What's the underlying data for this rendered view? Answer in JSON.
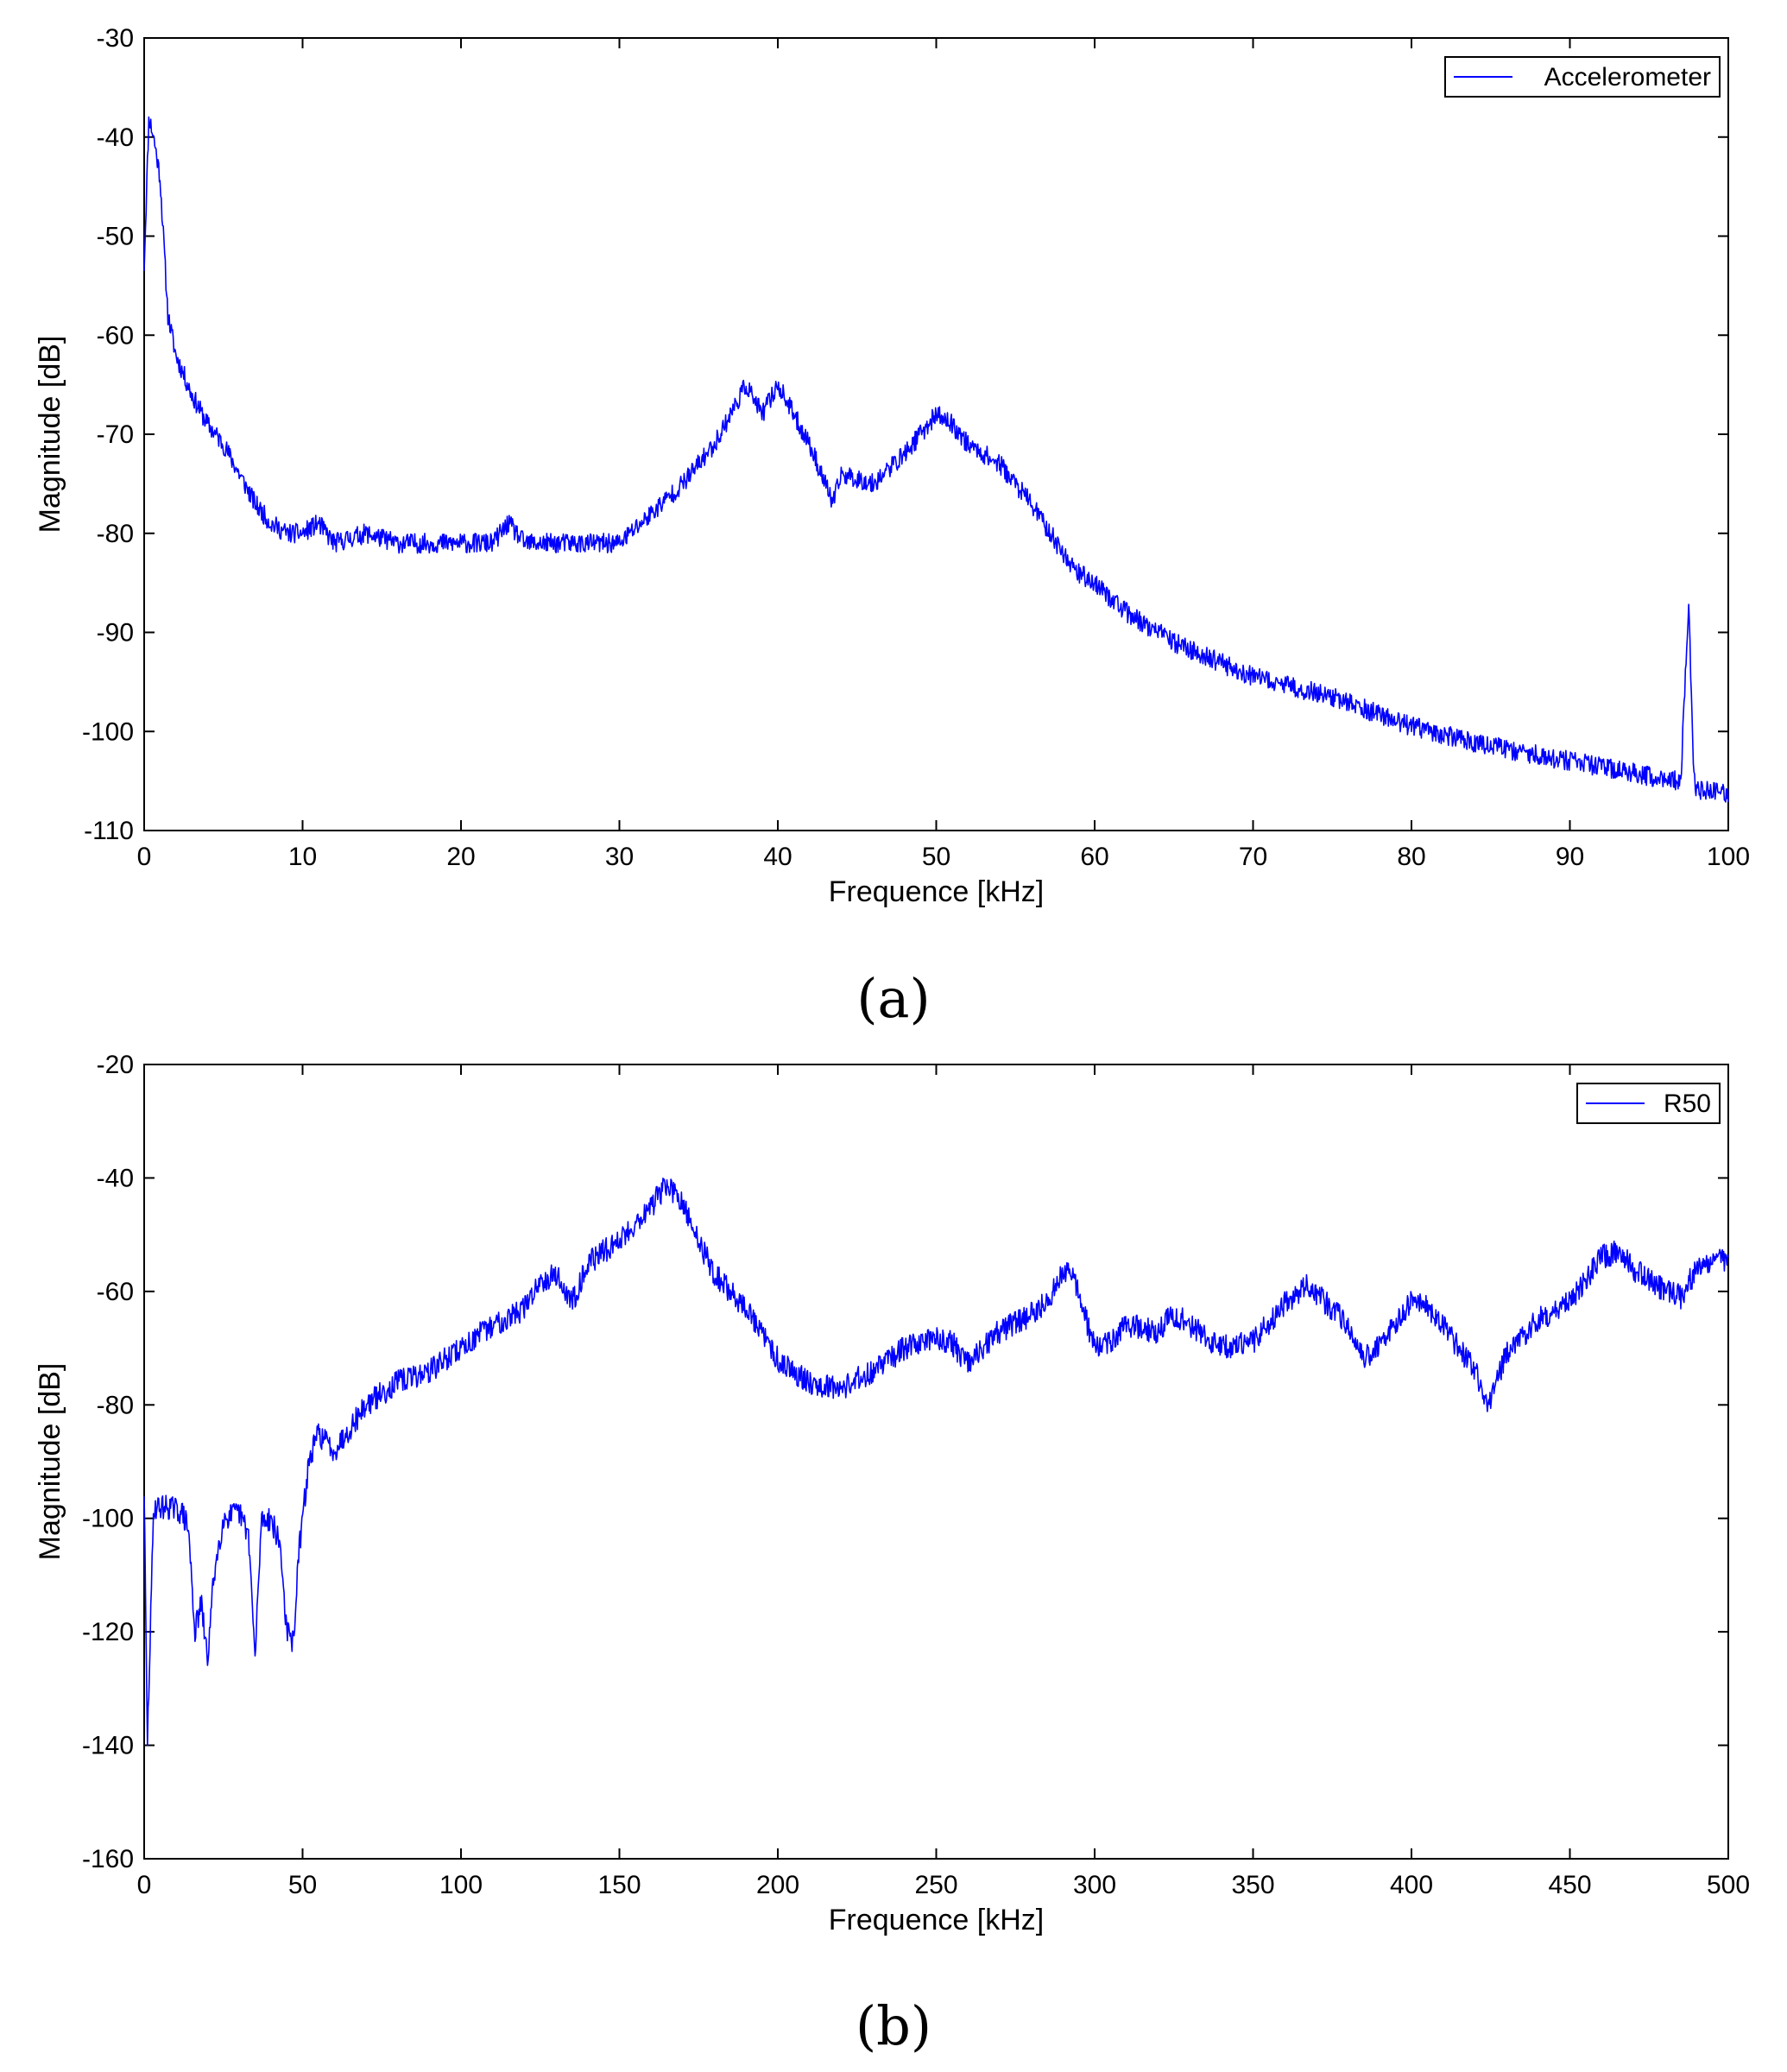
{
  "panels": [
    {
      "label": "(a)"
    },
    {
      "label": "(b)"
    }
  ],
  "chart_data": [
    {
      "type": "line",
      "xlabel": "Frequence [kHz]",
      "ylabel": "Magnitude [dB]",
      "xlim": [
        0,
        100
      ],
      "ylim": [
        -110,
        -30
      ],
      "xticks": [
        0,
        10,
        20,
        30,
        40,
        50,
        60,
        70,
        80,
        90,
        100
      ],
      "yticks": [
        -30,
        -40,
        -50,
        -60,
        -70,
        -80,
        -90,
        -100,
        -110
      ],
      "grid": false,
      "legend_position": "top-right",
      "series": [
        {
          "name": "Accelerometer",
          "color": "#0000ff",
          "x": [
            0,
            0.3,
            0.6,
            1,
            1.5,
            2,
            3,
            4,
            5,
            6,
            7,
            8,
            9,
            10,
            11,
            12,
            14,
            16,
            18,
            20,
            22,
            23,
            24,
            26,
            28,
            30,
            32,
            34,
            36,
            37,
            38,
            39,
            40,
            41,
            42,
            43,
            43.5,
            44,
            46,
            48,
            50,
            51,
            52,
            54,
            56,
            58,
            59,
            60,
            62,
            65,
            70,
            75,
            80,
            85,
            90,
            95,
            97,
            97.5,
            97.8,
            98,
            99,
            100
          ],
          "y": [
            -53,
            -38,
            -40,
            -44,
            -58,
            -62,
            -66,
            -69,
            -71,
            -74,
            -77,
            -79,
            -80,
            -80,
            -79,
            -81,
            -80,
            -81,
            -81,
            -81,
            -81,
            -79,
            -81,
            -81,
            -81,
            -81,
            -78,
            -75,
            -71,
            -68,
            -65,
            -68,
            -65,
            -68,
            -71,
            -75,
            -77,
            -74,
            -75,
            -72,
            -68,
            -69,
            -71,
            -73,
            -77,
            -82,
            -84,
            -85,
            -88,
            -91,
            -94.5,
            -96.5,
            -99.5,
            -101.5,
            -103,
            -104.5,
            -105,
            -87,
            -104,
            -106,
            -106,
            -106.5
          ]
        }
      ]
    },
    {
      "type": "line",
      "xlabel": "Frequence [kHz]",
      "ylabel": "Magnitude [dB]",
      "xlim": [
        0,
        500
      ],
      "ylim": [
        -160,
        -20
      ],
      "xticks": [
        0,
        50,
        100,
        150,
        200,
        250,
        300,
        350,
        400,
        450,
        500
      ],
      "yticks": [
        -20,
        -40,
        -60,
        -80,
        -100,
        -120,
        -140,
        -160
      ],
      "grid": false,
      "legend_position": "top-right",
      "series": [
        {
          "name": "R50",
          "color": "#0000ff",
          "x": [
            0,
            1,
            3,
            8,
            12,
            14,
            16,
            18,
            20,
            22,
            25,
            30,
            33,
            35,
            37,
            40,
            43,
            45,
            47,
            49,
            52,
            55,
            60,
            70,
            80,
            90,
            100,
            110,
            120,
            125,
            130,
            135,
            140,
            150,
            160,
            165,
            170,
            180,
            190,
            200,
            210,
            220,
            230,
            240,
            250,
            255,
            260,
            265,
            270,
            280,
            285,
            292,
            300,
            305,
            310,
            320,
            325,
            330,
            340,
            350,
            360,
            367,
            375,
            380,
            385,
            390,
            400,
            405,
            410,
            420,
            424,
            430,
            440,
            450,
            460,
            465,
            470,
            480,
            485,
            490,
            500
          ],
          "y": [
            -95,
            -140,
            -98,
            -98,
            -99,
            -102,
            -120,
            -115,
            -125,
            -110,
            -100,
            -99,
            -103,
            -125,
            -100,
            -100,
            -105,
            -120,
            -122,
            -105,
            -90,
            -85,
            -88,
            -80,
            -76,
            -74,
            -70,
            -66,
            -63,
            -58,
            -57,
            -62,
            -55,
            -51,
            -45,
            -41,
            -45,
            -57,
            -63,
            -72,
            -76,
            -77,
            -74,
            -70,
            -68,
            -69,
            -73,
            -70,
            -67,
            -64,
            -62,
            -55,
            -70,
            -69,
            -66,
            -67,
            -64,
            -66,
            -70,
            -69,
            -62,
            -59,
            -63,
            -66,
            -72,
            -69,
            -62,
            -63,
            -66,
            -74,
            -80,
            -71,
            -65,
            -62,
            -54,
            -53,
            -56,
            -60,
            -61,
            -56,
            -54
          ]
        }
      ]
    }
  ]
}
